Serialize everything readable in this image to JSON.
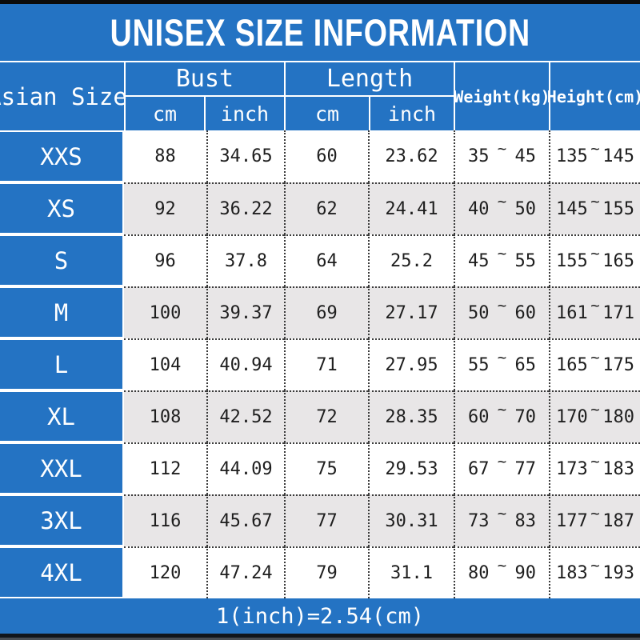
{
  "colors": {
    "header_blue": "#2473C3",
    "alt_row_gray": "#E8E6E7",
    "top_bar_black": "#0B0B0B",
    "bottom_bar_black": "#10151C",
    "text_dark": "#1E1E1E",
    "header_text_white": "#FFFFFF"
  },
  "chart_data": {
    "type": "table",
    "title": "UNISEX SIZE INFORMATION",
    "column_groups": [
      {
        "label": "Asian Size"
      },
      {
        "label": "Bust",
        "sub": [
          "cm",
          "inch"
        ]
      },
      {
        "label": "Length",
        "sub": [
          "cm",
          "inch"
        ]
      },
      {
        "label": "Weight(kg)"
      },
      {
        "label": "Height(cm)"
      }
    ],
    "tilde": "~",
    "rows": [
      {
        "size": "XXS",
        "bust_cm": "88",
        "bust_inch": "34.65",
        "length_cm": "60",
        "length_inch": "23.62",
        "weight_min": "35",
        "weight_max": "45",
        "height_min": "135",
        "height_max": "145"
      },
      {
        "size": "XS",
        "bust_cm": "92",
        "bust_inch": "36.22",
        "length_cm": "62",
        "length_inch": "24.41",
        "weight_min": "40",
        "weight_max": "50",
        "height_min": "145",
        "height_max": "155"
      },
      {
        "size": "S",
        "bust_cm": "96",
        "bust_inch": "37.8",
        "length_cm": "64",
        "length_inch": "25.2",
        "weight_min": "45",
        "weight_max": "55",
        "height_min": "155",
        "height_max": "165"
      },
      {
        "size": "M",
        "bust_cm": "100",
        "bust_inch": "39.37",
        "length_cm": "69",
        "length_inch": "27.17",
        "weight_min": "50",
        "weight_max": "60",
        "height_min": "161",
        "height_max": "171"
      },
      {
        "size": "L",
        "bust_cm": "104",
        "bust_inch": "40.94",
        "length_cm": "71",
        "length_inch": "27.95",
        "weight_min": "55",
        "weight_max": "65",
        "height_min": "165",
        "height_max": "175"
      },
      {
        "size": "XL",
        "bust_cm": "108",
        "bust_inch": "42.52",
        "length_cm": "72",
        "length_inch": "28.35",
        "weight_min": "60",
        "weight_max": "70",
        "height_min": "170",
        "height_max": "180"
      },
      {
        "size": "XXL",
        "bust_cm": "112",
        "bust_inch": "44.09",
        "length_cm": "75",
        "length_inch": "29.53",
        "weight_min": "67",
        "weight_max": "77",
        "height_min": "173",
        "height_max": "183"
      },
      {
        "size": "3XL",
        "bust_cm": "116",
        "bust_inch": "45.67",
        "length_cm": "77",
        "length_inch": "30.31",
        "weight_min": "73",
        "weight_max": "83",
        "height_min": "177",
        "height_max": "187"
      },
      {
        "size": "4XL",
        "bust_cm": "120",
        "bust_inch": "47.24",
        "length_cm": "79",
        "length_inch": "31.1",
        "weight_min": "80",
        "weight_max": "90",
        "height_min": "183",
        "height_max": "193"
      }
    ],
    "footnote": "1(inch)=2.54(cm)"
  }
}
